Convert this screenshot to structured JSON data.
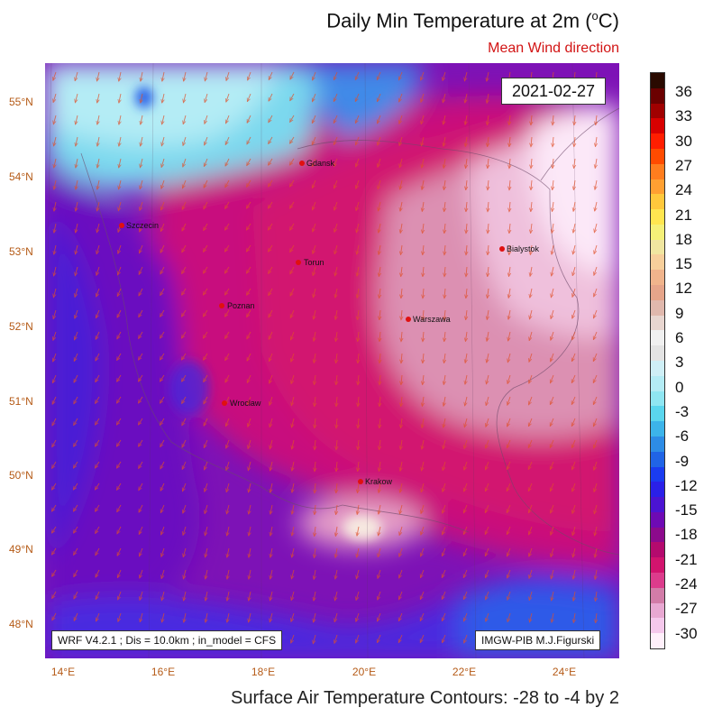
{
  "title_prefix": "Daily Min Temperature at 2m (",
  "title_sup": "o",
  "title_suffix": "C)",
  "subtitle": "Mean Wind direction",
  "date": "2021-02-27",
  "model_info": "WRF V4.2.1 ; Dis = 10.0km ; in_model = CFS",
  "credit": "IMGW-PIB M.J.Figurski",
  "footer": "Surface Air Temperature Contours: -28 to -4 by 2",
  "lat_ticks": [
    "55°N",
    "54°N",
    "53°N",
    "52°N",
    "51°N",
    "50°N",
    "49°N",
    "48°N"
  ],
  "lon_ticks": [
    "14°E",
    "16°E",
    "18°E",
    "20°E",
    "22°E",
    "24°E"
  ],
  "cities": [
    {
      "name": "Gdansk"
    },
    {
      "name": "Szczecin"
    },
    {
      "name": "Torun"
    },
    {
      "name": "Bialystok"
    },
    {
      "name": "Poznan"
    },
    {
      "name": "Warszawa"
    },
    {
      "name": "Wroclaw"
    },
    {
      "name": "Krakow"
    }
  ],
  "colorbar": {
    "labels": [
      "36",
      "33",
      "30",
      "27",
      "24",
      "21",
      "18",
      "15",
      "12",
      "9",
      "6",
      "3",
      "0",
      "-3",
      "-6",
      "-9",
      "-12",
      "-15",
      "-18",
      "-21",
      "-24",
      "-27",
      "-30"
    ],
    "colors": [
      "#2a0a00",
      "#6b0000",
      "#a00000",
      "#d80000",
      "#ff1e00",
      "#ff4b00",
      "#ff7d1e",
      "#ffa032",
      "#ffc83c",
      "#ffe650",
      "#f5f078",
      "#f0e6a0",
      "#f7cf9b",
      "#f0b48c",
      "#e6a58a",
      "#e0b8ad",
      "#e8d6d0",
      "#f0f0f0",
      "#e3e3e3",
      "#cfeff6",
      "#b4ecf5",
      "#8fe6f2",
      "#5ad6ee",
      "#3cb4ea",
      "#2d8ce6",
      "#2064e6",
      "#1a3cf0",
      "#2a20e8",
      "#4b14d2",
      "#6e0ab4",
      "#8c0a8c",
      "#b40a6e",
      "#d2146e",
      "#dc3c8c",
      "#d27ca8",
      "#e8a8d2",
      "#f5c8ec",
      "#fff0fb"
    ]
  }
}
